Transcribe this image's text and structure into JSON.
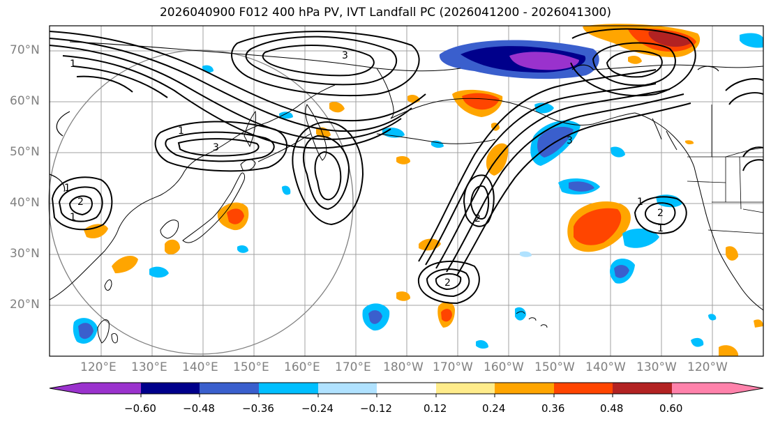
{
  "title": "2026040900 F012 400 hPa PV, IVT Landfall PC (2026041200 - 2026041300)",
  "lat_labels": [
    "70°N",
    "60°N",
    "50°N",
    "40°N",
    "30°N",
    "20°N"
  ],
  "lon_labels": [
    "120°E",
    "130°E",
    "140°E",
    "150°E",
    "160°E",
    "170°E",
    "180°W",
    "170°W",
    "160°W",
    "150°W",
    "140°W",
    "130°W",
    "120°W"
  ],
  "colorbar": {
    "ticks": [
      "−0.60",
      "−0.48",
      "−0.36",
      "−0.24",
      "−0.12",
      "0.12",
      "0.24",
      "0.36",
      "0.48",
      "0.60"
    ],
    "colors": [
      "#9a32cd",
      "#00008b",
      "#3a5fcd",
      "#00bfff",
      "#b0e2ff",
      "#ffffff",
      "#ffec8b",
      "#ffa500",
      "#ff4500",
      "#b22222",
      "#ff82ab"
    ]
  },
  "contour_labels": [
    "1",
    "3",
    "1",
    "2",
    "3",
    "1",
    "1",
    "3",
    "2",
    "2",
    "1",
    "2",
    "1"
  ],
  "colors": {
    "axis": "#808080",
    "grid": "#a0a0a0",
    "coast": "#000000",
    "contour": "#000000"
  }
}
